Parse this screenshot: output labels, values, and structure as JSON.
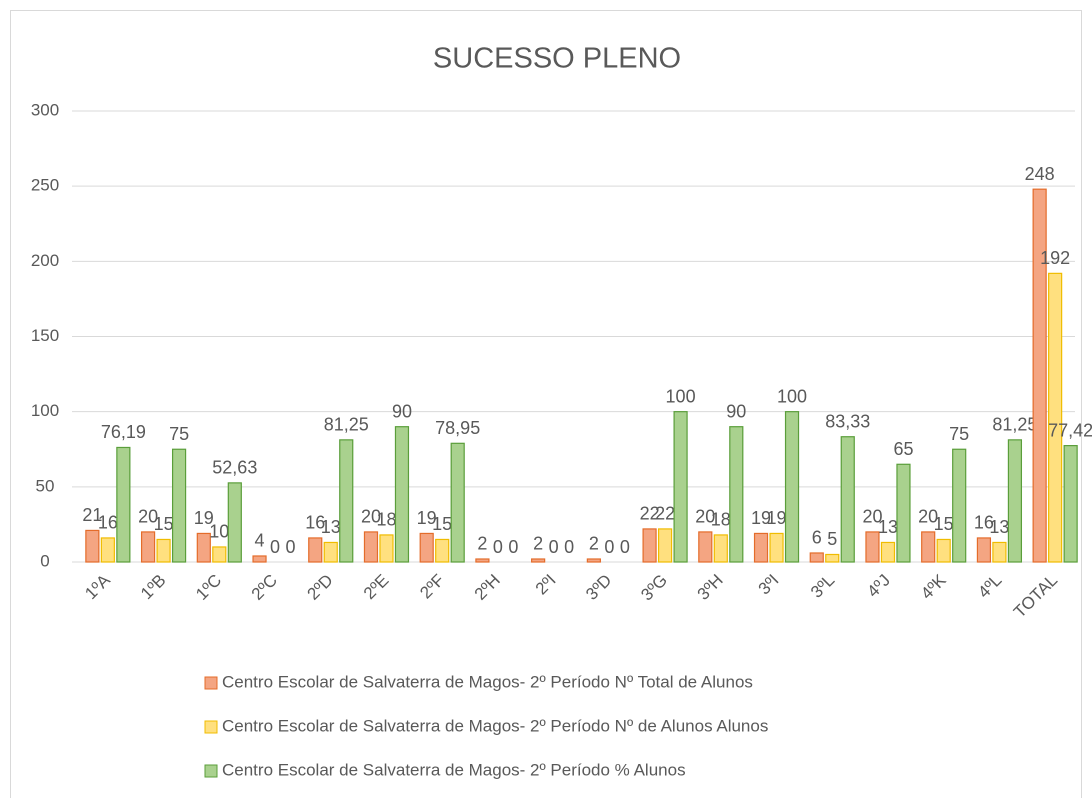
{
  "chart_data": {
    "type": "bar",
    "title": "SUCESSO PLENO",
    "categories": [
      "1ºA",
      "1ºB",
      "1ºC",
      "2ºC",
      "2ºD",
      "2ºE",
      "2ºF",
      "2ºH",
      "2ºI",
      "3ºD",
      "3ºG",
      "3ºH",
      "3ºI",
      "3ºL",
      "4ºJ",
      "4ºK",
      "4ºL",
      "TOTAL"
    ],
    "series": [
      {
        "name": "Centro Escolar de Salvaterra de Magos- 2º Período Nº Total de Alunos",
        "color": "#f4a582",
        "stroke": "#e46c2a",
        "values": [
          21,
          20,
          19,
          4,
          16,
          20,
          19,
          2,
          2,
          2,
          22,
          20,
          19,
          6,
          20,
          20,
          16,
          248
        ]
      },
      {
        "name": "Centro Escolar de Salvaterra de Magos- 2º Período Nº de Alunos Alunos",
        "color": "#ffe07f",
        "stroke": "#f0bc00",
        "values": [
          16,
          15,
          10,
          0,
          13,
          18,
          15,
          0,
          0,
          0,
          22,
          18,
          19,
          5,
          13,
          15,
          13,
          192
        ]
      },
      {
        "name": "Centro Escolar de Salvaterra de Magos- 2º Período % Alunos",
        "color": "#a9d18e",
        "stroke": "#5a9e3a",
        "values": [
          76.19,
          75,
          52.63,
          0,
          81.25,
          90,
          78.95,
          0,
          0,
          0,
          100,
          90,
          100,
          83.33,
          65,
          75,
          81.25,
          77.42
        ],
        "value_labels": [
          "76,19",
          "75",
          "52,63",
          "0",
          "81,25",
          "90",
          "78,95",
          "0",
          "0",
          "0",
          "100",
          "90",
          "100",
          "83,33",
          "65",
          "75",
          "81,25",
          "77,42"
        ]
      }
    ],
    "ylim": [
      0,
      300
    ],
    "yticks": [
      0,
      50,
      100,
      150,
      200,
      250,
      300
    ],
    "grid": true,
    "legend": "bottom"
  }
}
